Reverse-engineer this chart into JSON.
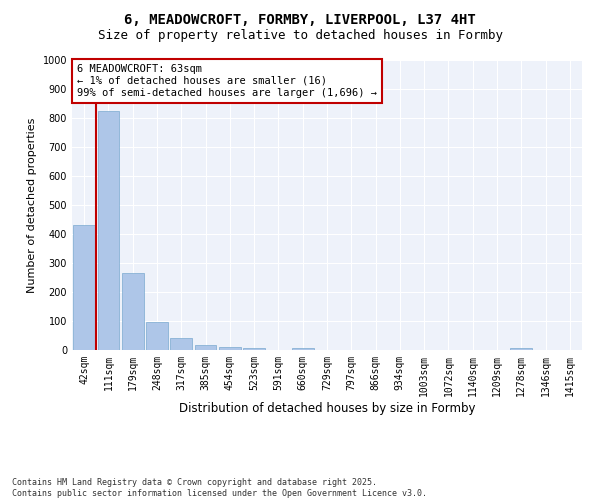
{
  "title_line1": "6, MEADOWCROFT, FORMBY, LIVERPOOL, L37 4HT",
  "title_line2": "Size of property relative to detached houses in Formby",
  "xlabel": "Distribution of detached houses by size in Formby",
  "ylabel": "Number of detached properties",
  "categories": [
    "42sqm",
    "111sqm",
    "179sqm",
    "248sqm",
    "317sqm",
    "385sqm",
    "454sqm",
    "523sqm",
    "591sqm",
    "660sqm",
    "729sqm",
    "797sqm",
    "866sqm",
    "934sqm",
    "1003sqm",
    "1072sqm",
    "1140sqm",
    "1209sqm",
    "1278sqm",
    "1346sqm",
    "1415sqm"
  ],
  "values": [
    430,
    825,
    265,
    95,
    42,
    18,
    12,
    8,
    0,
    8,
    0,
    0,
    0,
    0,
    0,
    0,
    0,
    0,
    8,
    0,
    0
  ],
  "bar_color": "#aec6e8",
  "bar_edgecolor": "#7aaad0",
  "highlight_color": "#c00000",
  "annotation_box_text": "6 MEADOWCROFT: 63sqm\n← 1% of detached houses are smaller (16)\n99% of semi-detached houses are larger (1,696) →",
  "annotation_box_color": "#c00000",
  "ylim": [
    0,
    1000
  ],
  "yticks": [
    0,
    100,
    200,
    300,
    400,
    500,
    600,
    700,
    800,
    900,
    1000
  ],
  "footnote": "Contains HM Land Registry data © Crown copyright and database right 2025.\nContains public sector information licensed under the Open Government Licence v3.0.",
  "background_color": "#eef2fa",
  "grid_color": "#ffffff",
  "title_fontsize": 10,
  "subtitle_fontsize": 9,
  "tick_fontsize": 7,
  "xlabel_fontsize": 8.5,
  "ylabel_fontsize": 8,
  "footnote_fontsize": 6,
  "annot_fontsize": 7.5
}
